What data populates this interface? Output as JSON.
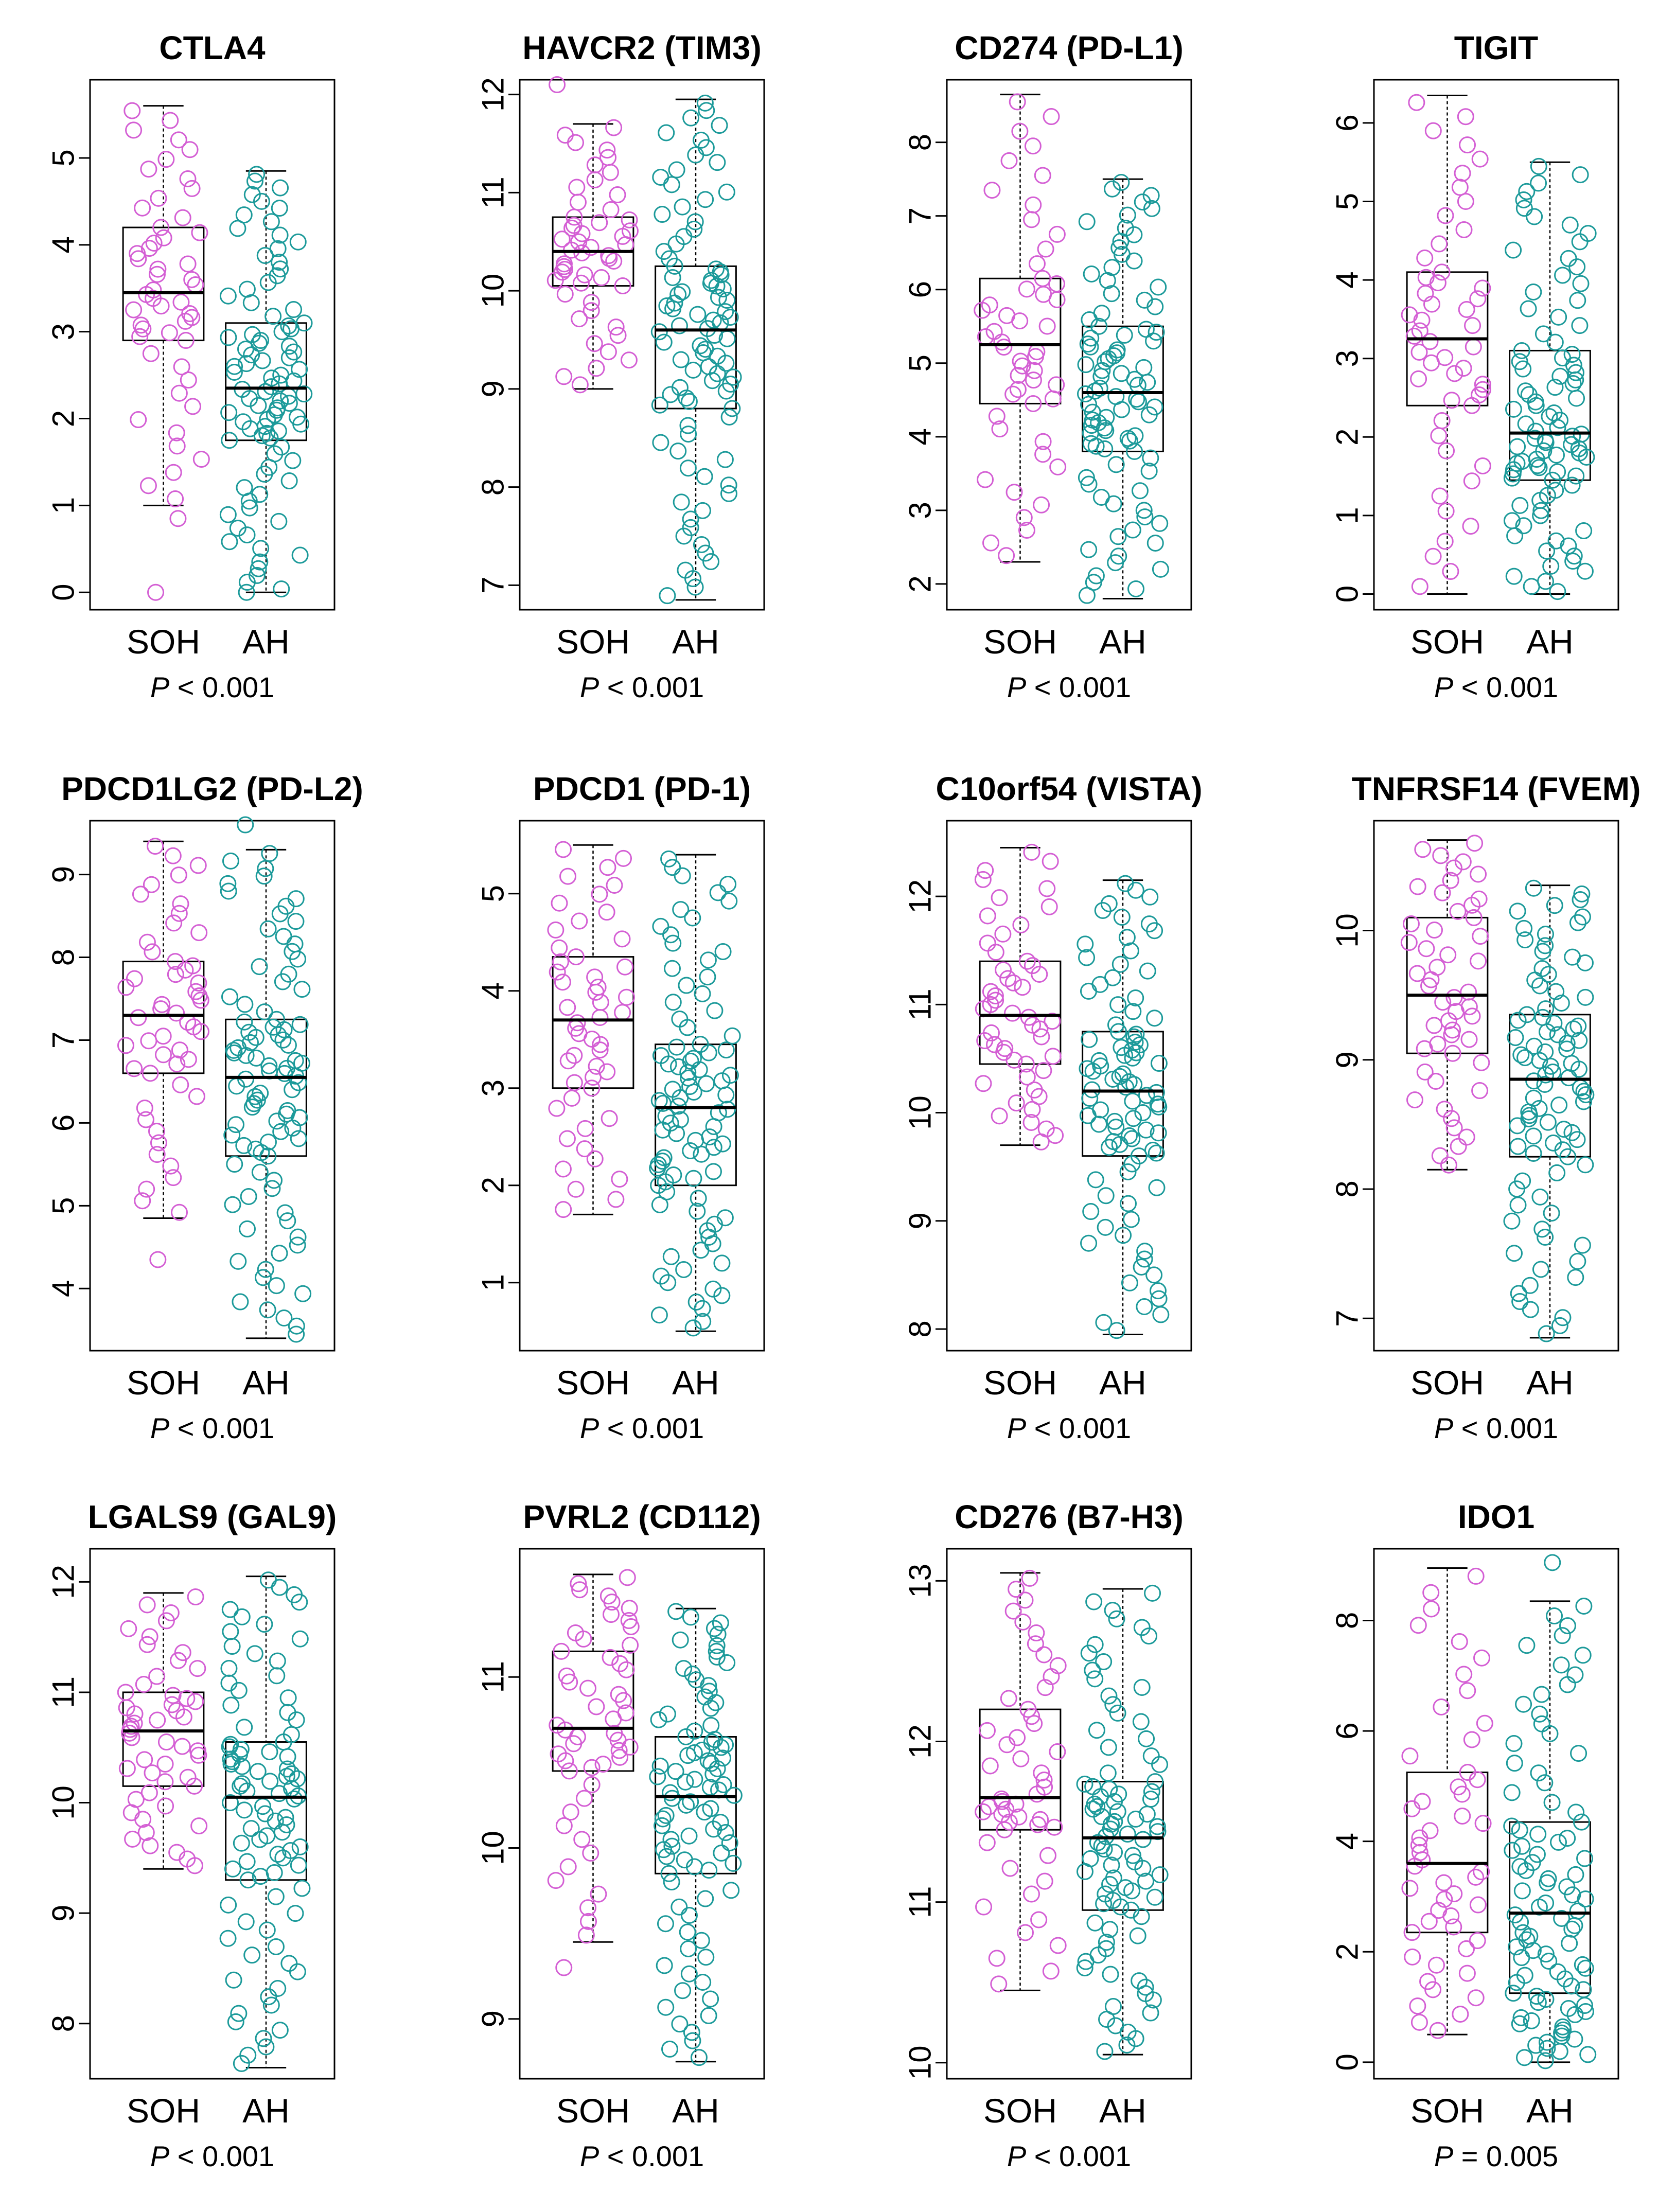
{
  "colors": {
    "SOH": "#d45fd4",
    "AH": "#1c9a9a",
    "axis": "#000000"
  },
  "groups": [
    "SOH",
    "AH"
  ],
  "chart_data": [
    {
      "type": "box",
      "title": "CTLA4",
      "p_prefix": "P",
      "p_rest": " < 0.001",
      "ylim": [
        -0.2,
        5.9
      ],
      "ticks": [
        0,
        1,
        2,
        3,
        4,
        5
      ],
      "boxes": [
        {
          "group": "SOH",
          "min": 1.0,
          "q1": 2.9,
          "median": 3.45,
          "q3": 4.2,
          "max": 5.6
        },
        {
          "group": "AH",
          "min": 0.0,
          "q1": 1.75,
          "median": 2.35,
          "q3": 3.1,
          "max": 4.85
        }
      ],
      "n": [
        50,
        90
      ],
      "outliers": [
        [
          0.85,
          0.0
        ],
        [
          0.0
        ]
      ]
    },
    {
      "type": "box",
      "title": "HAVCR2 (TIM3)",
      "p_prefix": "P",
      "p_rest": " < 0.001",
      "ylim": [
        6.75,
        12.15
      ],
      "ticks": [
        7,
        8,
        9,
        10,
        11,
        12
      ],
      "boxes": [
        {
          "group": "SOH",
          "min": 9.0,
          "q1": 10.05,
          "median": 10.4,
          "q3": 10.75,
          "max": 11.7
        },
        {
          "group": "AH",
          "min": 6.85,
          "q1": 8.8,
          "median": 9.6,
          "q3": 10.25,
          "max": 11.95
        }
      ],
      "n": [
        50,
        90
      ],
      "outliers": [
        [
          12.1
        ],
        []
      ]
    },
    {
      "type": "box",
      "title": "CD274 (PD-L1)",
      "p_prefix": "P",
      "p_rest": " < 0.001",
      "ylim": [
        1.65,
        8.85
      ],
      "ticks": [
        2,
        3,
        4,
        5,
        6,
        7,
        8
      ],
      "boxes": [
        {
          "group": "SOH",
          "min": 2.3,
          "q1": 4.45,
          "median": 5.25,
          "q3": 6.15,
          "max": 8.65
        },
        {
          "group": "AH",
          "min": 1.8,
          "q1": 3.8,
          "median": 4.6,
          "q3": 5.5,
          "max": 7.5
        }
      ],
      "n": [
        50,
        90
      ],
      "outliers": [
        [],
        []
      ]
    },
    {
      "type": "box",
      "title": "TIGIT",
      "p_prefix": "P",
      "p_rest": " < 0.001",
      "ylim": [
        -0.2,
        6.55
      ],
      "ticks": [
        0,
        1,
        2,
        3,
        4,
        5,
        6
      ],
      "boxes": [
        {
          "group": "SOH",
          "min": 0.0,
          "q1": 2.4,
          "median": 3.25,
          "q3": 4.1,
          "max": 6.35
        },
        {
          "group": "AH",
          "min": 0.0,
          "q1": 1.45,
          "median": 2.05,
          "q3": 3.1,
          "max": 5.5
        }
      ],
      "n": [
        50,
        90
      ],
      "outliers": [
        [],
        []
      ]
    },
    {
      "type": "box",
      "title": "PDCD1LG2 (PD-L2)",
      "p_prefix": "P",
      "p_rest": " < 0.001",
      "ylim": [
        3.25,
        9.65
      ],
      "ticks": [
        4,
        5,
        6,
        7,
        8,
        9
      ],
      "boxes": [
        {
          "group": "SOH",
          "min": 4.85,
          "q1": 6.6,
          "median": 7.3,
          "q3": 7.95,
          "max": 9.4
        },
        {
          "group": "AH",
          "min": 3.4,
          "q1": 5.6,
          "median": 6.55,
          "q3": 7.25,
          "max": 9.3
        }
      ],
      "n": [
        50,
        90
      ],
      "outliers": [
        [
          4.35
        ],
        [
          9.6
        ]
      ]
    },
    {
      "type": "box",
      "title": "PDCD1 (PD-1)",
      "p_prefix": "P",
      "p_rest": " < 0.001",
      "ylim": [
        0.3,
        5.75
      ],
      "ticks": [
        1,
        2,
        3,
        4,
        5
      ],
      "boxes": [
        {
          "group": "SOH",
          "min": 1.7,
          "q1": 3.0,
          "median": 3.7,
          "q3": 4.35,
          "max": 5.5
        },
        {
          "group": "AH",
          "min": 0.5,
          "q1": 2.0,
          "median": 2.8,
          "q3": 3.45,
          "max": 5.4
        }
      ],
      "n": [
        50,
        90
      ],
      "outliers": [
        [],
        []
      ]
    },
    {
      "type": "box",
      "title": "C10orf54 (VISTA)",
      "p_prefix": "P",
      "p_rest": " < 0.001",
      "ylim": [
        7.8,
        12.7
      ],
      "ticks": [
        8,
        9,
        10,
        11,
        12
      ],
      "boxes": [
        {
          "group": "SOH",
          "min": 9.7,
          "q1": 10.45,
          "median": 10.9,
          "q3": 11.4,
          "max": 12.45
        },
        {
          "group": "AH",
          "min": 7.95,
          "q1": 9.6,
          "median": 10.2,
          "q3": 10.75,
          "max": 12.15
        }
      ],
      "n": [
        50,
        90
      ],
      "outliers": [
        [],
        []
      ]
    },
    {
      "type": "box",
      "title": "TNFRSF14 (FVEM)",
      "p_prefix": "P",
      "p_rest": " < 0.001",
      "ylim": [
        6.75,
        10.85
      ],
      "ticks": [
        7,
        8,
        9,
        10
      ],
      "boxes": [
        {
          "group": "SOH",
          "min": 8.15,
          "q1": 9.05,
          "median": 9.5,
          "q3": 10.1,
          "max": 10.7
        },
        {
          "group": "AH",
          "min": 6.85,
          "q1": 8.25,
          "median": 8.85,
          "q3": 9.35,
          "max": 10.35
        }
      ],
      "n": [
        50,
        90
      ],
      "outliers": [
        [],
        []
      ]
    },
    {
      "type": "box",
      "title": "LGALS9 (GAL9)",
      "p_prefix": "P",
      "p_rest": " < 0.001",
      "ylim": [
        7.5,
        12.3
      ],
      "ticks": [
        8,
        9,
        10,
        11,
        12
      ],
      "boxes": [
        {
          "group": "SOH",
          "min": 9.4,
          "q1": 10.15,
          "median": 10.65,
          "q3": 11.0,
          "max": 11.9
        },
        {
          "group": "AH",
          "min": 7.6,
          "q1": 9.3,
          "median": 10.05,
          "q3": 10.55,
          "max": 12.05
        }
      ],
      "n": [
        50,
        90
      ],
      "outliers": [
        [],
        []
      ]
    },
    {
      "type": "box",
      "title": "PVRL2 (CD112)",
      "p_prefix": "P",
      "p_rest": " < 0.001",
      "ylim": [
        8.65,
        11.75
      ],
      "ticks": [
        9,
        10,
        11
      ],
      "boxes": [
        {
          "group": "SOH",
          "min": 9.45,
          "q1": 10.45,
          "median": 10.7,
          "q3": 11.15,
          "max": 11.6
        },
        {
          "group": "AH",
          "min": 8.75,
          "q1": 9.85,
          "median": 10.3,
          "q3": 10.65,
          "max": 11.4
        }
      ],
      "n": [
        50,
        90
      ],
      "outliers": [
        [
          9.3
        ],
        []
      ]
    },
    {
      "type": "box",
      "title": "CD276 (B7-H3)",
      "p_prefix": "P",
      "p_rest": " < 0.001",
      "ylim": [
        9.9,
        13.2
      ],
      "ticks": [
        10,
        11,
        12,
        13
      ],
      "boxes": [
        {
          "group": "SOH",
          "min": 10.45,
          "q1": 11.45,
          "median": 11.65,
          "q3": 12.2,
          "max": 13.05
        },
        {
          "group": "AH",
          "min": 10.05,
          "q1": 10.95,
          "median": 11.4,
          "q3": 11.75,
          "max": 12.95
        }
      ],
      "n": [
        50,
        90
      ],
      "outliers": [
        [],
        []
      ]
    },
    {
      "type": "box",
      "title": "IDO1",
      "p_prefix": "P",
      "p_rest": " = 0.005",
      "ylim": [
        -0.3,
        9.3
      ],
      "ticks": [
        0,
        2,
        4,
        6,
        8
      ],
      "boxes": [
        {
          "group": "SOH",
          "min": 0.5,
          "q1": 2.35,
          "median": 3.6,
          "q3": 5.25,
          "max": 8.95
        },
        {
          "group": "AH",
          "min": 0.0,
          "q1": 1.25,
          "median": 2.7,
          "q3": 4.35,
          "max": 8.35
        }
      ],
      "n": [
        50,
        90
      ],
      "outliers": [
        [],
        [
          9.05
        ]
      ]
    }
  ]
}
